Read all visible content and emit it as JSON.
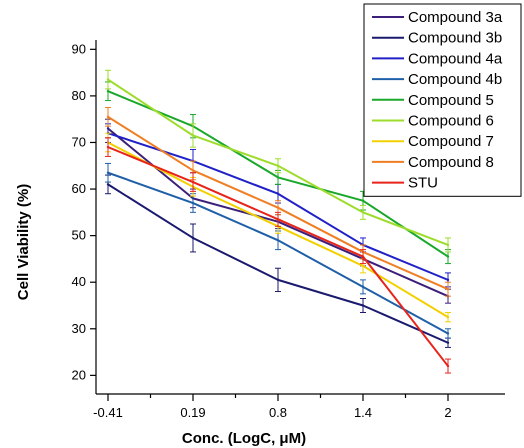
{
  "chart_data": {
    "type": "line",
    "title": "",
    "xlabel": "Conc. (LogC, μM)",
    "ylabel": "Cell Viability (%)",
    "categories": [
      "-0.41",
      "0.19",
      "0.8",
      "1.4",
      "2"
    ],
    "x": [
      -0.41,
      0.19,
      0.8,
      1.4,
      2
    ],
    "ylim": [
      16,
      92
    ],
    "yticks": [
      20,
      30,
      40,
      50,
      60,
      70,
      80,
      90
    ],
    "grid": false,
    "legend_position": "top-right",
    "series": [
      {
        "name": "Compound 3a",
        "color": "#3b1f7a",
        "values": [
          73,
          58,
          53,
          45,
          37
        ],
        "errors": [
          2,
          2,
          1.5,
          1.5,
          1.5
        ]
      },
      {
        "name": "Compound 3b",
        "color": "#1a1a6e",
        "values": [
          61,
          49.5,
          40.5,
          35,
          27
        ],
        "errors": [
          2,
          3,
          2.5,
          1.5,
          1
        ]
      },
      {
        "name": "Compound 4a",
        "color": "#2020c8",
        "values": [
          72,
          66,
          59,
          48,
          40.5
        ],
        "errors": [
          2,
          2.5,
          2,
          1.5,
          1.5
        ]
      },
      {
        "name": "Compound 4b",
        "color": "#1f5fa8",
        "values": [
          63.5,
          57,
          49,
          39,
          29
        ],
        "errors": [
          2,
          2,
          2,
          1.5,
          1
        ]
      },
      {
        "name": "Compound 5",
        "color": "#1aa82a",
        "values": [
          81,
          73.5,
          62.5,
          57.5,
          45.5
        ],
        "errors": [
          2,
          2.5,
          1.5,
          2,
          1.5
        ]
      },
      {
        "name": "Compound 6",
        "color": "#9edc2c",
        "values": [
          83.5,
          71.5,
          65,
          55,
          48
        ],
        "errors": [
          2,
          2.5,
          1.5,
          1.5,
          1.5
        ]
      },
      {
        "name": "Compound 7",
        "color": "#f2d000",
        "values": [
          70,
          60.5,
          52,
          43.5,
          32.5
        ],
        "errors": [
          2,
          2,
          1.5,
          1.5,
          1
        ]
      },
      {
        "name": "Compound 8",
        "color": "#f07e22",
        "values": [
          75.5,
          64,
          56,
          46.5,
          38.5
        ],
        "errors": [
          2,
          2,
          1.5,
          1.5,
          1.5
        ]
      },
      {
        "name": "STU",
        "color": "#e8231a",
        "values": [
          69,
          61.5,
          53.5,
          45.5,
          22
        ],
        "errors": [
          2,
          2,
          1.5,
          1.5,
          1.5
        ]
      }
    ]
  }
}
